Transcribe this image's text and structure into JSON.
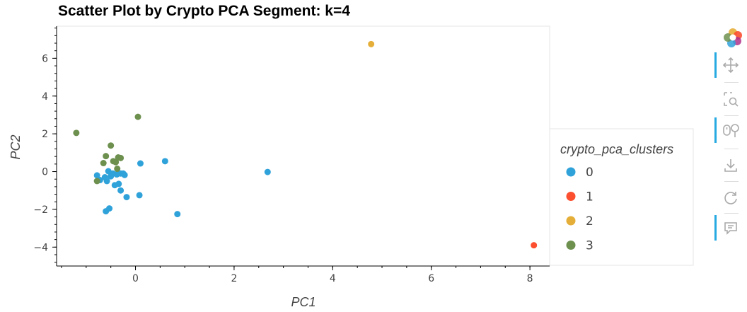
{
  "chart_data": {
    "type": "scatter",
    "title": "Scatter Plot by Crypto PCA Segment: k=4",
    "xlabel": "PC1",
    "ylabel": "PC2",
    "xlim": [
      -1.6,
      8.4
    ],
    "ylim": [
      -5.0,
      7.7
    ],
    "x_ticks": [
      0,
      2,
      4,
      6,
      8
    ],
    "y_ticks": [
      -4,
      -2,
      0,
      2,
      4,
      6
    ],
    "x_tick_labels": [
      "0",
      "2",
      "4",
      "6",
      "8"
    ],
    "y_tick_labels": [
      "−4",
      "−2",
      "0",
      "2",
      "4",
      "6"
    ],
    "grid": false,
    "legend_title": "crypto_pca_clusters",
    "legend_position": "right",
    "series": [
      {
        "name": "0",
        "color": "#30a2da",
        "points": [
          [
            -0.78,
            -0.2
          ],
          [
            -0.72,
            -0.45
          ],
          [
            -0.62,
            -0.3
          ],
          [
            -0.58,
            -0.5
          ],
          [
            -0.55,
            0.02
          ],
          [
            -0.5,
            -0.25
          ],
          [
            -0.46,
            -0.1
          ],
          [
            -0.42,
            -0.72
          ],
          [
            -0.38,
            -0.15
          ],
          [
            -0.34,
            -0.65
          ],
          [
            -0.3,
            -0.1
          ],
          [
            -0.25,
            -0.1
          ],
          [
            -0.3,
            -1.0
          ],
          [
            -0.22,
            -0.18
          ],
          [
            -0.18,
            -1.35
          ],
          [
            -0.6,
            -2.1
          ],
          [
            -0.53,
            -1.95
          ],
          [
            0.08,
            -1.25
          ],
          [
            0.1,
            0.43
          ],
          [
            0.6,
            0.55
          ],
          [
            0.85,
            -2.25
          ],
          [
            2.68,
            -0.02
          ]
        ]
      },
      {
        "name": "1",
        "color": "#fc4f30",
        "points": [
          [
            8.08,
            -3.9
          ]
        ]
      },
      {
        "name": "2",
        "color": "#e5ae38",
        "points": [
          [
            4.78,
            6.75
          ]
        ]
      },
      {
        "name": "3",
        "color": "#6d904f",
        "points": [
          [
            -1.2,
            2.05
          ],
          [
            -0.78,
            -0.5
          ],
          [
            -0.65,
            0.45
          ],
          [
            -0.6,
            0.82
          ],
          [
            -0.5,
            1.38
          ],
          [
            -0.45,
            0.55
          ],
          [
            -0.4,
            0.5
          ],
          [
            -0.35,
            0.75
          ],
          [
            -0.3,
            0.72
          ],
          [
            -0.37,
            0.15
          ],
          [
            0.05,
            2.9
          ]
        ]
      }
    ]
  },
  "toolbar": {
    "logo": "bokeh-logo-icon",
    "tools": [
      "pan-icon",
      "box-zoom-icon",
      "wheel-zoom-icon",
      "save-icon",
      "reset-icon",
      "hover-icon"
    ],
    "active_color": "#26aae1"
  }
}
